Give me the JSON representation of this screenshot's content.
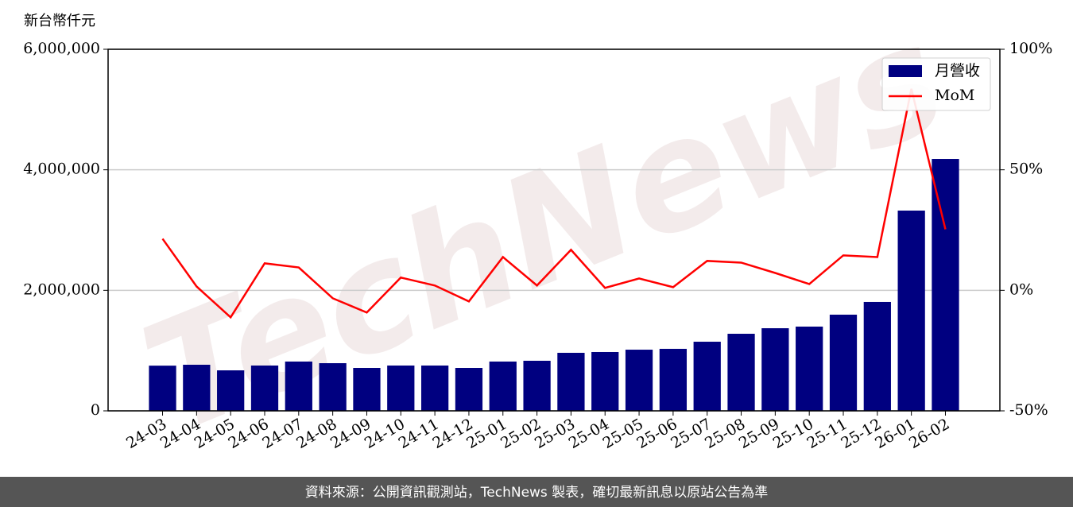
{
  "chart_data": {
    "type": "bar_line",
    "y_label": "新台幣仟元",
    "watermark": "TechNews",
    "footer": "資料來源：公開資訊觀測站，TechNews 製表，確切最新訊息以原站公告為準",
    "categories": [
      "24-03",
      "24-04",
      "24-05",
      "24-06",
      "24-07",
      "24-08",
      "24-09",
      "24-10",
      "24-11",
      "24-12",
      "25-01",
      "25-02",
      "25-03",
      "25-04",
      "25-05",
      "25-06",
      "25-07",
      "25-08",
      "25-09",
      "25-10",
      "25-11",
      "25-12",
      "26-01",
      "26-02"
    ],
    "series": [
      {
        "name": "月營收",
        "type": "bar",
        "color": "#000080",
        "values": [
          750000,
          765000,
          672000,
          752000,
          818000,
          791000,
          712000,
          752000,
          752000,
          712000,
          818000,
          831000,
          963000,
          976000,
          1015000,
          1029000,
          1147000,
          1279000,
          1371000,
          1398000,
          1596000,
          1807000,
          3323000,
          4180000
        ]
      },
      {
        "name": "MoM",
        "type": "line",
        "axis": "y2",
        "color": "#ff0000",
        "values": [
          21.4,
          1.6,
          -11.2,
          11.2,
          9.5,
          -3.3,
          -9.2,
          5.3,
          2.0,
          -4.6,
          13.8,
          2.0,
          16.8,
          1.0,
          4.9,
          1.3,
          12.2,
          11.5,
          7.2,
          2.6,
          14.5,
          13.8,
          83.6,
          25.3
        ]
      }
    ],
    "ylim": [
      0,
      6000000
    ],
    "yticks": [
      0,
      {
        "value": 2000000,
        "label": "2,000,000"
      },
      {
        "value": 4000000,
        "label": "4,000,000"
      },
      {
        "value": 6000000,
        "label": "6,000,000"
      }
    ],
    "y2lim": [
      -50,
      100
    ],
    "y2ticks": [
      {
        "value": -50,
        "label": "-50%"
      },
      {
        "value": 0,
        "label": "0%"
      },
      {
        "value": 50,
        "label": "50%"
      },
      {
        "value": 100,
        "label": "100%"
      }
    ],
    "grid": true,
    "legend": "upper right"
  }
}
